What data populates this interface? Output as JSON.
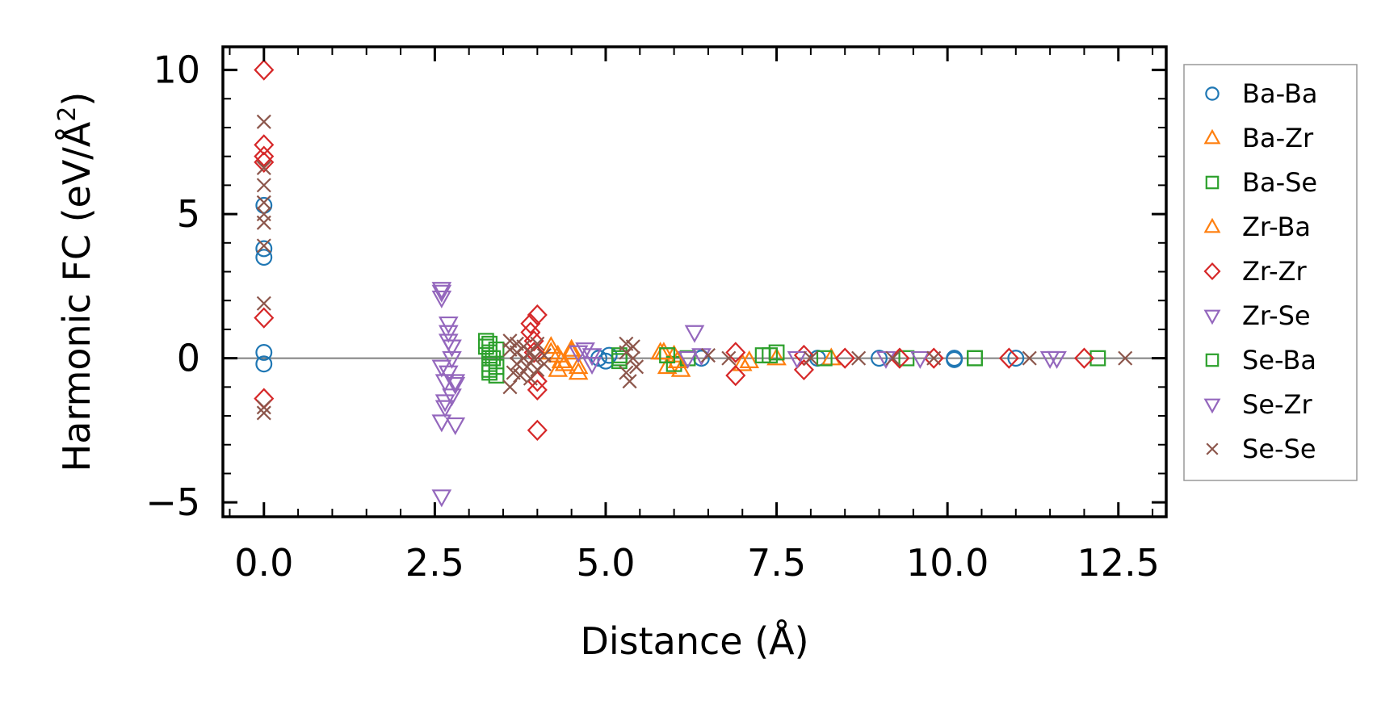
{
  "chart_data": {
    "type": "scatter",
    "title": "",
    "xlabel": "Distance (Å)",
    "ylabel": "Harmonic FC (eV/Å²)",
    "ylabel_parts": {
      "main": "Harmonic FC (eV/Å",
      "sup": "2",
      "close": ")"
    },
    "xlim": [
      -0.6,
      13.2
    ],
    "ylim": [
      -5.5,
      10.8
    ],
    "xticks": [
      0.0,
      2.5,
      5.0,
      7.5,
      10.0,
      12.5
    ],
    "xtick_labels": [
      "0.0",
      "2.5",
      "5.0",
      "7.5",
      "10.0",
      "12.5"
    ],
    "yticks": [
      -5,
      0,
      5,
      10
    ],
    "ytick_labels": [
      "−5",
      "0",
      "5",
      "10"
    ],
    "zero_line": true,
    "grid": false,
    "legend_position": "outside-right",
    "series": [
      {
        "name": "Ba-Ba",
        "marker": "circle",
        "color": "#1f77b4",
        "points": [
          [
            0,
            5.3
          ],
          [
            0,
            3.8
          ],
          [
            0,
            3.5
          ],
          [
            0,
            0.2
          ],
          [
            0,
            -0.2
          ],
          [
            4.9,
            0.0
          ],
          [
            5.0,
            -0.1
          ],
          [
            5.05,
            0.1
          ],
          [
            6.4,
            0.0
          ],
          [
            8.1,
            0.0
          ],
          [
            9.0,
            0.0
          ],
          [
            10.1,
            0.0
          ],
          [
            10.1,
            -0.05
          ],
          [
            11.0,
            0.0
          ]
        ]
      },
      {
        "name": "Ba-Zr",
        "marker": "triangle-up",
        "color": "#ff7f0e",
        "points": [
          [
            4.2,
            0.4
          ],
          [
            4.3,
            0.1
          ],
          [
            4.3,
            -0.4
          ],
          [
            4.4,
            -0.2
          ],
          [
            4.5,
            0.3
          ],
          [
            4.6,
            -0.5
          ],
          [
            5.8,
            0.2
          ],
          [
            5.9,
            -0.3
          ],
          [
            6.0,
            0.1
          ],
          [
            6.1,
            -0.4
          ],
          [
            7.1,
            -0.1
          ],
          [
            7.5,
            0.0
          ],
          [
            8.3,
            0.0
          ]
        ]
      },
      {
        "name": "Ba-Se",
        "marker": "square",
        "color": "#2ca02c",
        "points": [
          [
            3.25,
            0.6
          ],
          [
            3.25,
            0.4
          ],
          [
            3.3,
            0.2
          ],
          [
            3.3,
            0.0
          ],
          [
            3.3,
            -0.2
          ],
          [
            3.3,
            -0.5
          ],
          [
            3.4,
            0.3
          ],
          [
            3.4,
            -0.3
          ],
          [
            3.4,
            -0.6
          ],
          [
            5.2,
            0.1
          ],
          [
            5.2,
            -0.1
          ],
          [
            5.9,
            0.1
          ],
          [
            6.0,
            -0.2
          ],
          [
            6.2,
            0.0
          ],
          [
            7.3,
            0.1
          ],
          [
            7.5,
            0.2
          ],
          [
            8.2,
            0.0
          ],
          [
            9.4,
            0.0
          ],
          [
            10.4,
            0.0
          ],
          [
            12.2,
            0.0
          ]
        ]
      },
      {
        "name": "Zr-Ba",
        "marker": "triangle-up",
        "color": "#ff7f0e",
        "points": [
          [
            4.2,
            0.2
          ],
          [
            4.35,
            -0.1
          ],
          [
            4.5,
            0.2
          ],
          [
            4.6,
            -0.3
          ],
          [
            5.85,
            0.2
          ],
          [
            6.05,
            -0.1
          ],
          [
            7.0,
            -0.2
          ]
        ]
      },
      {
        "name": "Zr-Zr",
        "marker": "diamond",
        "color": "#d62728",
        "points": [
          [
            0,
            10.0
          ],
          [
            0,
            7.4
          ],
          [
            0,
            7.0
          ],
          [
            0,
            6.8
          ],
          [
            0,
            1.4
          ],
          [
            0,
            -1.4
          ],
          [
            3.9,
            1.2
          ],
          [
            3.9,
            0.9
          ],
          [
            3.95,
            0.6
          ],
          [
            3.95,
            0.2
          ],
          [
            4.0,
            -0.8
          ],
          [
            4.0,
            -1.1
          ],
          [
            4.0,
            1.5
          ],
          [
            4.0,
            -2.5
          ],
          [
            6.9,
            0.2
          ],
          [
            6.9,
            -0.6
          ],
          [
            7.9,
            0.1
          ],
          [
            7.9,
            -0.4
          ],
          [
            8.5,
            0.0
          ],
          [
            9.3,
            0.0
          ],
          [
            9.8,
            0.0
          ],
          [
            10.9,
            0.0
          ],
          [
            12.0,
            0.0
          ]
        ]
      },
      {
        "name": "Zr-Se",
        "marker": "triangle-down",
        "color": "#9467bd",
        "points": [
          [
            2.6,
            2.3
          ],
          [
            2.6,
            2.1
          ],
          [
            2.6,
            -0.3
          ],
          [
            2.65,
            -0.8
          ],
          [
            2.65,
            -1.5
          ],
          [
            2.6,
            -2.2
          ],
          [
            2.6,
            -4.8
          ],
          [
            2.7,
            1.2
          ],
          [
            2.7,
            0.9
          ],
          [
            2.75,
            0.4
          ],
          [
            2.75,
            0.0
          ],
          [
            2.7,
            -0.5
          ],
          [
            2.8,
            -0.9
          ],
          [
            2.75,
            -1.3
          ],
          [
            2.8,
            -2.3
          ],
          [
            4.6,
            0.2
          ],
          [
            4.8,
            0.1
          ],
          [
            4.8,
            -0.2
          ],
          [
            6.3,
            0.9
          ],
          [
            6.4,
            0.1
          ],
          [
            7.8,
            0.0
          ],
          [
            9.1,
            0.0
          ],
          [
            11.6,
            0.0
          ]
        ]
      },
      {
        "name": "Se-Ba",
        "marker": "square",
        "color": "#2ca02c",
        "points": [
          [
            3.3,
            0.5
          ],
          [
            3.35,
            0.0
          ],
          [
            3.3,
            -0.4
          ],
          [
            5.2,
            0.0
          ],
          [
            5.9,
            0.1
          ],
          [
            7.4,
            0.1
          ],
          [
            10.4,
            0.0
          ]
        ]
      },
      {
        "name": "Se-Zr",
        "marker": "triangle-down",
        "color": "#9467bd",
        "points": [
          [
            2.6,
            2.4
          ],
          [
            2.65,
            -1.7
          ],
          [
            2.7,
            0.6
          ],
          [
            2.8,
            -0.8
          ],
          [
            4.7,
            0.3
          ],
          [
            6.2,
            0.0
          ],
          [
            9.6,
            0.0
          ],
          [
            11.5,
            0.0
          ]
        ]
      },
      {
        "name": "Se-Se",
        "marker": "x",
        "color": "#8c564b",
        "points": [
          [
            0,
            8.2
          ],
          [
            0,
            6.6
          ],
          [
            0,
            6.0
          ],
          [
            0,
            5.4
          ],
          [
            0,
            5.0
          ],
          [
            0,
            4.7
          ],
          [
            0,
            3.9
          ],
          [
            0,
            1.9
          ],
          [
            0,
            -1.7
          ],
          [
            0,
            -1.9
          ],
          [
            3.6,
            0.6
          ],
          [
            3.6,
            0.3
          ],
          [
            3.65,
            -0.5
          ],
          [
            3.6,
            -1.0
          ],
          [
            3.7,
            0.5
          ],
          [
            3.7,
            0.2
          ],
          [
            3.7,
            -0.2
          ],
          [
            3.75,
            -0.6
          ],
          [
            3.8,
            0.0
          ],
          [
            3.8,
            0.4
          ],
          [
            3.85,
            -0.3
          ],
          [
            3.9,
            0.2
          ],
          [
            3.9,
            -0.7
          ],
          [
            3.95,
            0.0
          ],
          [
            4.0,
            0.5
          ],
          [
            4.0,
            -0.4
          ],
          [
            4.1,
            0.1
          ],
          [
            4.1,
            -0.2
          ],
          [
            5.3,
            0.5
          ],
          [
            5.3,
            0.2
          ],
          [
            5.3,
            -0.5
          ],
          [
            5.35,
            -0.8
          ],
          [
            5.4,
            0.0
          ],
          [
            5.4,
            0.4
          ],
          [
            5.45,
            -0.3
          ],
          [
            6.5,
            0.1
          ],
          [
            6.8,
            0.0
          ],
          [
            8.0,
            0.0
          ],
          [
            8.7,
            0.0
          ],
          [
            9.2,
            0.0
          ],
          [
            9.8,
            0.0
          ],
          [
            11.2,
            0.0
          ],
          [
            12.6,
            0.0
          ]
        ]
      }
    ]
  }
}
